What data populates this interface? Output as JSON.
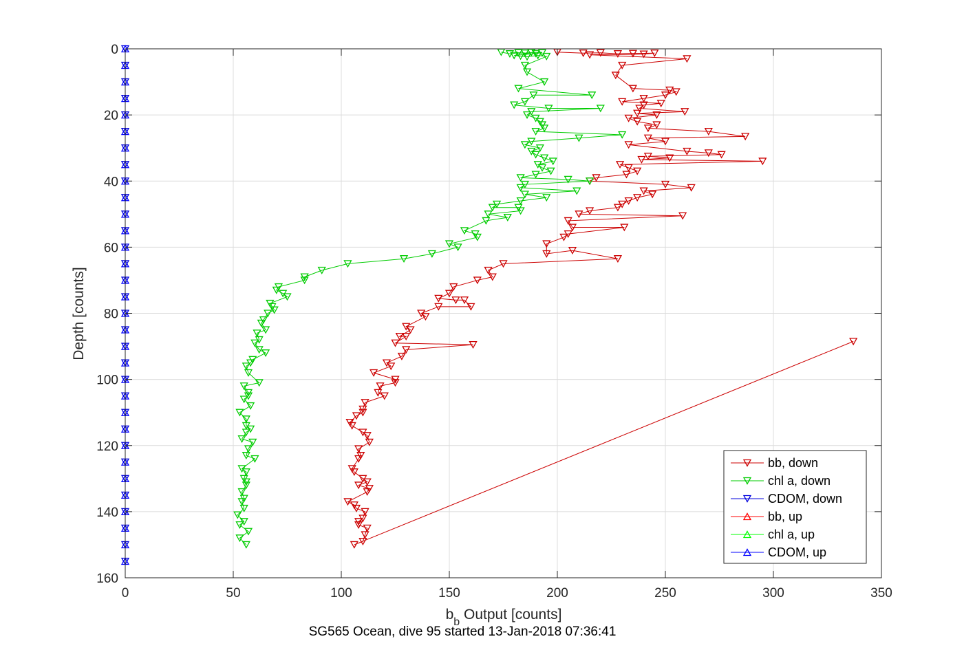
{
  "chart_data": {
    "type": "scatter",
    "title": "",
    "caption": "SG565 Ocean, dive 95 started 13-Jan-2018 07:36:41",
    "xlabel": {
      "main": "b",
      "sub": "b",
      "rest": " Output [counts]"
    },
    "ylabel": "Depth [counts]",
    "xlim": [
      0,
      350
    ],
    "ylim": [
      160,
      0
    ],
    "y_reversed": true,
    "xticks": [
      0,
      50,
      100,
      150,
      200,
      250,
      300,
      350
    ],
    "yticks": [
      0,
      20,
      40,
      60,
      80,
      100,
      120,
      140,
      160
    ],
    "grid": true,
    "legend_position": "bottom-right",
    "series": [
      {
        "name": "bb, down",
        "color": "#cc0000",
        "marker": "triangle-down",
        "line": true,
        "points": [
          [
            200,
            1
          ],
          [
            212,
            1.3
          ],
          [
            220,
            1.2
          ],
          [
            228,
            1.5
          ],
          [
            235,
            1.4
          ],
          [
            245,
            1.3
          ],
          [
            240,
            1.6
          ],
          [
            215,
            1.8
          ],
          [
            260,
            3
          ],
          [
            230,
            5
          ],
          [
            227,
            8
          ],
          [
            235,
            12
          ],
          [
            252,
            12.5
          ],
          [
            255,
            13
          ],
          [
            250,
            14
          ],
          [
            240,
            15
          ],
          [
            230,
            16
          ],
          [
            248,
            16.5
          ],
          [
            240,
            17
          ],
          [
            238,
            18
          ],
          [
            259,
            19
          ],
          [
            237,
            19.5
          ],
          [
            246,
            20
          ],
          [
            233,
            21
          ],
          [
            237,
            22
          ],
          [
            246,
            23
          ],
          [
            242,
            24
          ],
          [
            270,
            25
          ],
          [
            287,
            26.5
          ],
          [
            242,
            27
          ],
          [
            250,
            28
          ],
          [
            233,
            29
          ],
          [
            260,
            31
          ],
          [
            270,
            31.5
          ],
          [
            276,
            32
          ],
          [
            242,
            32.5
          ],
          [
            252,
            33
          ],
          [
            239,
            33.5
          ],
          [
            295,
            34
          ],
          [
            229,
            35
          ],
          [
            233,
            36
          ],
          [
            237,
            37
          ],
          [
            232,
            38
          ],
          [
            218,
            39
          ],
          [
            215,
            40
          ],
          [
            250,
            41
          ],
          [
            262,
            42
          ],
          [
            240,
            43
          ],
          [
            244,
            44
          ],
          [
            237,
            45
          ],
          [
            233,
            46
          ],
          [
            230,
            47
          ],
          [
            228,
            48
          ],
          [
            215,
            49
          ],
          [
            210,
            50
          ],
          [
            258,
            50.5
          ],
          [
            205,
            52
          ],
          [
            207,
            54
          ],
          [
            231,
            54
          ],
          [
            205,
            56
          ],
          [
            203,
            57
          ],
          [
            195,
            59
          ],
          [
            195,
            62
          ],
          [
            207,
            61
          ],
          [
            228,
            63.5
          ],
          [
            175,
            65
          ],
          [
            168,
            67
          ],
          [
            170,
            69
          ],
          [
            163,
            70
          ],
          [
            152,
            72
          ],
          [
            150,
            74
          ],
          [
            145,
            75.5
          ],
          [
            153,
            76
          ],
          [
            157,
            76
          ],
          [
            160,
            78
          ],
          [
            145,
            78
          ],
          [
            137,
            80
          ],
          [
            139,
            81
          ],
          [
            130,
            84
          ],
          [
            132,
            85
          ],
          [
            127,
            87
          ],
          [
            130,
            87
          ],
          [
            125,
            89
          ],
          [
            161,
            89.5
          ],
          [
            130,
            91
          ],
          [
            128,
            93
          ],
          [
            121,
            95
          ],
          [
            123,
            96
          ],
          [
            115,
            98
          ],
          [
            125,
            100
          ],
          [
            125,
            101
          ],
          [
            118,
            102
          ],
          [
            117,
            104
          ],
          [
            120,
            105
          ],
          [
            111,
            107
          ],
          [
            110,
            109
          ],
          [
            110,
            110
          ],
          [
            107,
            111
          ],
          [
            104,
            113
          ],
          [
            105,
            114
          ],
          [
            110,
            116
          ],
          [
            112,
            117
          ],
          [
            113,
            119
          ],
          [
            108,
            121
          ],
          [
            109,
            123
          ],
          [
            108,
            124
          ],
          [
            105,
            127
          ],
          [
            106,
            128
          ],
          [
            110,
            130
          ],
          [
            112,
            131
          ],
          [
            108,
            132
          ],
          [
            113,
            133
          ],
          [
            112,
            134
          ],
          [
            103,
            137
          ],
          [
            106,
            138
          ],
          [
            107,
            139
          ],
          [
            111,
            140
          ],
          [
            110,
            142
          ],
          [
            108,
            143
          ],
          [
            108,
            144
          ],
          [
            112,
            145
          ],
          [
            111,
            147
          ],
          [
            110,
            149
          ],
          [
            106,
            150
          ],
          [
            337,
            88.5
          ]
        ]
      },
      {
        "name": "chl a, down",
        "color": "#00cc00",
        "marker": "triangle-down",
        "line": true,
        "points": [
          [
            174,
            1
          ],
          [
            178,
            1.5
          ],
          [
            182,
            1.2
          ],
          [
            185,
            1.3
          ],
          [
            188,
            1.1
          ],
          [
            190,
            1.4
          ],
          [
            193,
            1.2
          ],
          [
            180,
            2
          ],
          [
            183,
            2.2
          ],
          [
            186,
            2.4
          ],
          [
            191,
            2
          ],
          [
            195,
            2.3
          ],
          [
            185,
            5
          ],
          [
            186,
            7
          ],
          [
            194,
            10
          ],
          [
            182,
            12
          ],
          [
            216,
            14
          ],
          [
            189,
            14
          ],
          [
            185,
            16
          ],
          [
            180,
            17
          ],
          [
            196,
            18
          ],
          [
            220,
            18
          ],
          [
            188,
            19
          ],
          [
            186,
            20
          ],
          [
            190,
            21
          ],
          [
            192,
            22
          ],
          [
            193,
            23
          ],
          [
            194,
            24
          ],
          [
            190,
            25
          ],
          [
            230,
            26
          ],
          [
            210,
            27
          ],
          [
            188,
            28
          ],
          [
            185,
            29
          ],
          [
            192,
            30
          ],
          [
            188,
            31
          ],
          [
            190,
            32
          ],
          [
            194,
            33
          ],
          [
            198,
            34
          ],
          [
            191,
            35
          ],
          [
            193,
            36
          ],
          [
            197,
            37
          ],
          [
            190,
            38
          ],
          [
            183,
            39
          ],
          [
            205,
            39.5
          ],
          [
            215,
            40
          ],
          [
            185,
            41
          ],
          [
            183,
            42
          ],
          [
            209,
            43
          ],
          [
            185,
            44
          ],
          [
            195,
            45
          ],
          [
            183,
            46
          ],
          [
            172,
            47
          ],
          [
            170,
            48
          ],
          [
            182,
            48
          ],
          [
            183,
            49
          ],
          [
            168,
            50
          ],
          [
            177,
            51
          ],
          [
            167,
            52
          ],
          [
            157,
            55
          ],
          [
            162,
            56
          ],
          [
            163,
            57
          ],
          [
            150,
            59
          ],
          [
            154,
            60
          ],
          [
            142,
            62
          ],
          [
            129,
            63.5
          ],
          [
            103,
            65
          ],
          [
            91,
            67
          ],
          [
            83,
            69
          ],
          [
            83,
            70
          ],
          [
            71,
            72
          ],
          [
            70,
            73
          ],
          [
            73,
            74
          ],
          [
            75,
            75
          ],
          [
            67,
            77
          ],
          [
            68,
            78
          ],
          [
            69,
            79
          ],
          [
            66,
            80
          ],
          [
            64,
            82
          ],
          [
            63,
            83
          ],
          [
            65,
            85
          ],
          [
            61,
            86
          ],
          [
            62,
            88
          ],
          [
            60,
            89
          ],
          [
            62,
            91
          ],
          [
            65,
            92
          ],
          [
            59,
            94
          ],
          [
            58,
            95
          ],
          [
            56,
            96
          ],
          [
            57,
            98
          ],
          [
            62,
            101
          ],
          [
            55,
            102
          ],
          [
            57,
            104
          ],
          [
            57,
            105
          ],
          [
            55,
            106
          ],
          [
            58,
            108
          ],
          [
            53,
            110
          ],
          [
            56,
            112
          ],
          [
            56,
            114
          ],
          [
            58,
            115
          ],
          [
            56,
            116
          ],
          [
            54,
            118
          ],
          [
            59,
            119
          ],
          [
            57,
            121
          ],
          [
            56,
            123
          ],
          [
            60,
            124
          ],
          [
            54,
            127
          ],
          [
            56,
            128
          ],
          [
            55,
            130
          ],
          [
            56,
            131
          ],
          [
            56,
            132
          ],
          [
            54,
            134
          ],
          [
            55,
            136
          ],
          [
            54,
            137
          ],
          [
            55,
            139
          ],
          [
            52,
            141
          ],
          [
            55,
            143
          ],
          [
            53,
            144
          ],
          [
            57,
            146
          ],
          [
            53,
            148
          ],
          [
            56,
            150
          ]
        ]
      },
      {
        "name": "CDOM, down",
        "color": "#0000dd",
        "marker": "triangle-down",
        "line": true,
        "points": [
          [
            0,
            0
          ],
          [
            0,
            5
          ],
          [
            0,
            10
          ],
          [
            0,
            15
          ],
          [
            0,
            20
          ],
          [
            0,
            25
          ],
          [
            0,
            30
          ],
          [
            0,
            35
          ],
          [
            0,
            40
          ],
          [
            0,
            45
          ],
          [
            0,
            50
          ],
          [
            0,
            55
          ],
          [
            0,
            60
          ],
          [
            0,
            65
          ],
          [
            0,
            70
          ],
          [
            0,
            75
          ],
          [
            0,
            80
          ],
          [
            0,
            85
          ],
          [
            0,
            90
          ],
          [
            0,
            95
          ],
          [
            0,
            100
          ],
          [
            0,
            105
          ],
          [
            0,
            110
          ],
          [
            0,
            115
          ],
          [
            0,
            120
          ],
          [
            0,
            125
          ],
          [
            0,
            130
          ],
          [
            0,
            135
          ],
          [
            0,
            140
          ],
          [
            0,
            145
          ],
          [
            0,
            150
          ],
          [
            0,
            155
          ]
        ]
      },
      {
        "name": "bb, up",
        "color": "#ff0000",
        "marker": "triangle-up",
        "line": true,
        "points": []
      },
      {
        "name": "chl a, up",
        "color": "#00ff00",
        "marker": "triangle-up",
        "line": true,
        "points": []
      },
      {
        "name": "CDOM, up",
        "color": "#0000ff",
        "marker": "triangle-up",
        "line": true,
        "points": [
          [
            0,
            0
          ],
          [
            0,
            5
          ],
          [
            0,
            10
          ],
          [
            0,
            15
          ],
          [
            0,
            20
          ],
          [
            0,
            25
          ],
          [
            0,
            30
          ],
          [
            0,
            35
          ],
          [
            0,
            40
          ],
          [
            0,
            45
          ],
          [
            0,
            50
          ],
          [
            0,
            55
          ],
          [
            0,
            60
          ],
          [
            0,
            65
          ],
          [
            0,
            70
          ],
          [
            0,
            75
          ],
          [
            0,
            80
          ],
          [
            0,
            85
          ],
          [
            0,
            90
          ],
          [
            0,
            95
          ],
          [
            0,
            100
          ],
          [
            0,
            105
          ],
          [
            0,
            110
          ],
          [
            0,
            115
          ],
          [
            0,
            120
          ],
          [
            0,
            125
          ],
          [
            0,
            130
          ],
          [
            0,
            135
          ],
          [
            0,
            140
          ],
          [
            0,
            145
          ],
          [
            0,
            150
          ],
          [
            0,
            155
          ]
        ]
      }
    ]
  }
}
